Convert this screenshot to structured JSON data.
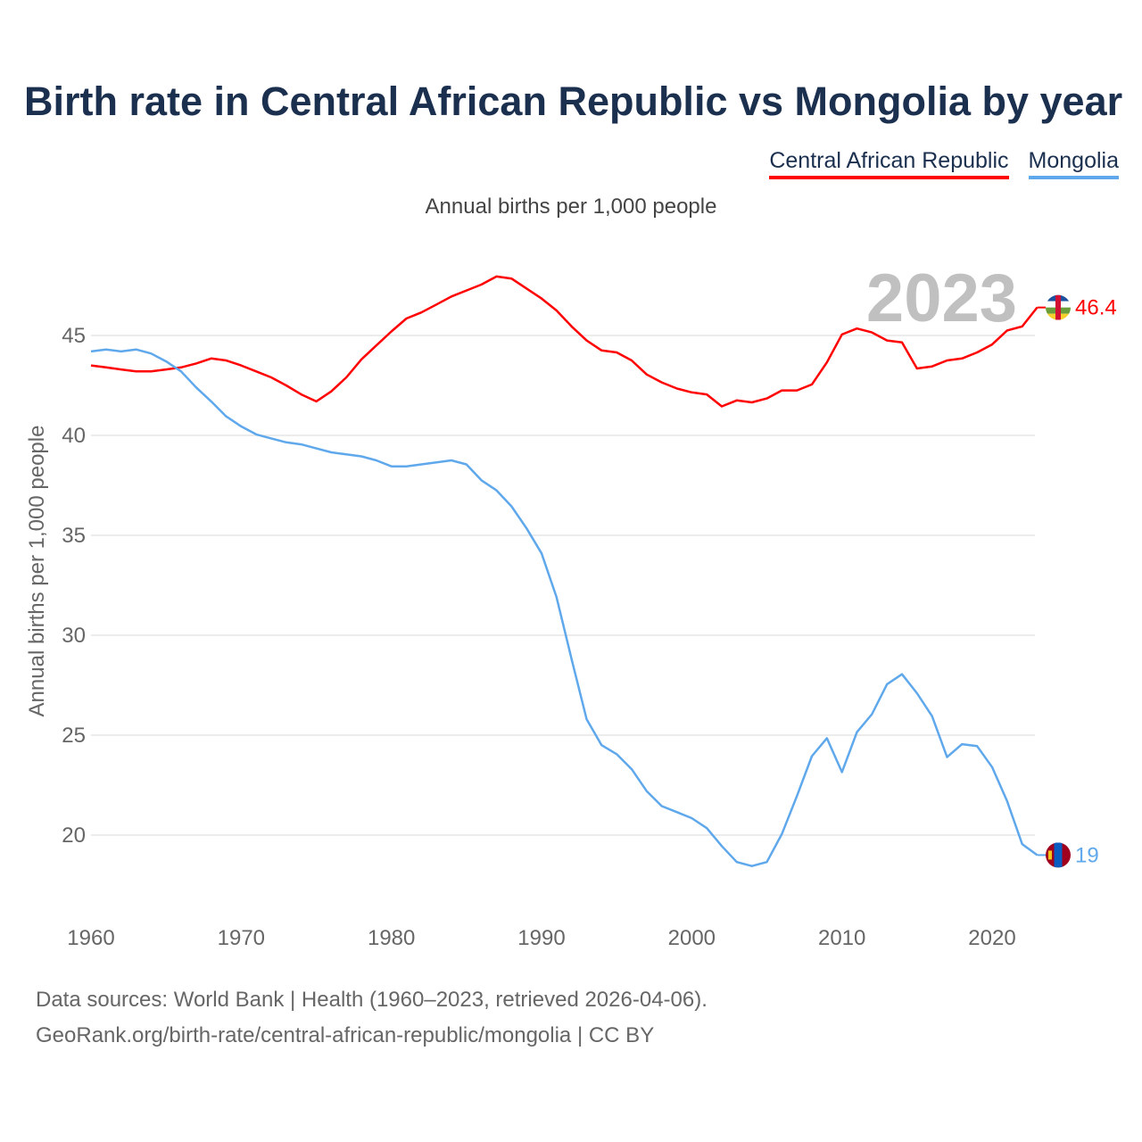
{
  "title": "Birth rate in Central African Republic vs Mongolia by year",
  "footer": {
    "line1": "Data sources: World Bank | Health (1960–2023, retrieved 2026-04-06).",
    "line2": "GeoRank.org/birth-rate/central-african-republic/mongolia | CC BY"
  },
  "chart_data": {
    "type": "line",
    "title": "Birth rate in Central African Republic vs Mongolia by year",
    "subtitle": "Annual births per 1,000 people",
    "xlabel": "",
    "ylabel": "Annual births per 1,000 people",
    "year_label": "2023",
    "xlim": [
      1960,
      2023
    ],
    "ylim": [
      17,
      48.5
    ],
    "xticks": [
      "1960",
      "1970",
      "1980",
      "1990",
      "2000",
      "2010",
      "2020"
    ],
    "yticks": [
      "20",
      "25",
      "30",
      "35",
      "40",
      "45"
    ],
    "legend_placement": "top-right",
    "x_start": 1960,
    "series": [
      {
        "name": "Central African Republic",
        "color": "#ff0000",
        "end_label": "46.4",
        "values": [
          43.5,
          43.4,
          43.3,
          43.2,
          43.2,
          43.3,
          43.4,
          43.6,
          43.85,
          43.75,
          43.5,
          43.2,
          42.9,
          42.5,
          42.05,
          41.7,
          42.2,
          42.9,
          43.8,
          44.5,
          45.2,
          45.85,
          46.15,
          46.55,
          46.95,
          47.25,
          47.55,
          47.95,
          47.85,
          47.35,
          46.85,
          46.25,
          45.45,
          44.75,
          44.25,
          44.15,
          43.75,
          43.05,
          42.65,
          42.35,
          42.15,
          42.05,
          41.45,
          41.75,
          41.65,
          41.85,
          42.25,
          42.25,
          42.55,
          43.65,
          45.05,
          45.35,
          45.15,
          44.75,
          44.65,
          43.35,
          43.45,
          43.75,
          43.85,
          44.15,
          44.55,
          45.25,
          45.45,
          46.4
        ]
      },
      {
        "name": "Mongolia",
        "color": "#5fa8ec",
        "end_label": "19",
        "values": [
          44.2,
          44.3,
          44.2,
          44.3,
          44.1,
          43.7,
          43.2,
          42.4,
          41.7,
          40.95,
          40.45,
          40.05,
          39.85,
          39.65,
          39.55,
          39.35,
          39.15,
          39.05,
          38.95,
          38.75,
          38.45,
          38.45,
          38.55,
          38.65,
          38.75,
          38.55,
          37.75,
          37.25,
          36.45,
          35.35,
          34.1,
          31.9,
          28.8,
          25.8,
          24.5,
          24.05,
          23.3,
          22.2,
          21.45,
          21.15,
          20.85,
          20.35,
          19.45,
          18.65,
          18.45,
          18.65,
          20.05,
          21.95,
          23.95,
          24.85,
          23.15,
          25.15,
          26.05,
          27.55,
          28.05,
          27.1,
          25.95,
          23.9,
          24.55,
          24.45,
          23.4,
          21.7,
          19.55,
          19.0
        ]
      }
    ]
  }
}
